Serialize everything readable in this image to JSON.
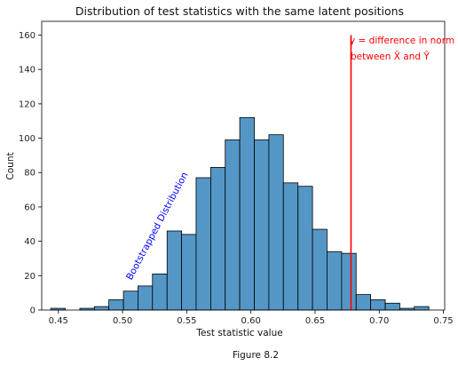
{
  "chart_data": {
    "type": "bar",
    "title": "Distribution of test statistics with the same latent positions",
    "xlabel": "Test statistic value",
    "ylabel": "Count",
    "caption": "Figure 8.2",
    "xlim": [
      0.437,
      0.751
    ],
    "ylim": [
      0,
      168
    ],
    "xticks": [
      0.45,
      0.5,
      0.55,
      0.6,
      0.65,
      0.7,
      0.75
    ],
    "xtick_labels": [
      "0.45",
      "0.50",
      "0.55",
      "0.60",
      "0.65",
      "0.70",
      "0.75"
    ],
    "yticks": [
      0,
      20,
      40,
      60,
      80,
      100,
      120,
      140,
      160
    ],
    "ytick_labels": [
      "0",
      "20",
      "40",
      "60",
      "80",
      "100",
      "120",
      "140",
      "160"
    ],
    "grid": false,
    "bar_color": "#5497c6",
    "bar_edge_color": "#000000",
    "bin_edges": [
      0.444,
      0.4553,
      0.4667,
      0.478,
      0.4893,
      0.5007,
      0.512,
      0.5233,
      0.5347,
      0.546,
      0.5573,
      0.5687,
      0.58,
      0.5913,
      0.6027,
      0.614,
      0.6253,
      0.6367,
      0.648,
      0.6593,
      0.6707,
      0.682,
      0.6933,
      0.7047,
      0.716,
      0.7273,
      0.7387
    ],
    "counts": [
      1,
      0,
      1,
      2,
      6,
      11,
      14,
      21,
      46,
      44,
      77,
      83,
      99,
      112,
      99,
      102,
      74,
      72,
      47,
      34,
      33,
      9,
      6,
      4,
      1,
      2
    ],
    "reference_line": {
      "x": 0.678,
      "y_range": [
        0,
        160
      ],
      "color": "#ff0000",
      "label_line1": "y = difference in norm",
      "label_line2": "between X̂ and Ŷ"
    },
    "annotation": {
      "text": "Bootstrapped Distribution",
      "color": "#0000ff"
    }
  }
}
